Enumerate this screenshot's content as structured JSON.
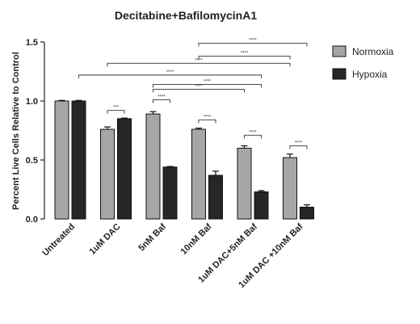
{
  "chart_data": {
    "type": "bar",
    "title": "Decitabine+BafilomycinA1",
    "ylabel": "Percent Live Cells Relative to Control",
    "xlabel": "",
    "ylim": [
      0,
      1.5
    ],
    "yticks": [
      "0.0",
      "0.5",
      "1.0",
      "1.5"
    ],
    "categories": [
      "Untreated",
      "1uM DAC",
      "5nM Baf",
      "10nM Baf",
      "1uM DAC+5nM Baf",
      "1uM DAC +10nM Baf"
    ],
    "series": [
      {
        "name": "Normoxia",
        "color": "#a6a6a6",
        "values": [
          1.0,
          0.76,
          0.89,
          0.76,
          0.6,
          0.52
        ],
        "errors": [
          0.005,
          0.02,
          0.02,
          0.01,
          0.02,
          0.03
        ]
      },
      {
        "name": "Hypoxia",
        "color": "#262626",
        "values": [
          1.0,
          0.85,
          0.44,
          0.37,
          0.23,
          0.1
        ],
        "errors": [
          0.005,
          0.005,
          0.005,
          0.035,
          0.01,
          0.02
        ]
      }
    ],
    "legend_position": "top-right",
    "significance": [
      {
        "from": [
          1,
          0
        ],
        "to": [
          1,
          1
        ],
        "label": "***"
      },
      {
        "from": [
          2,
          0
        ],
        "to": [
          2,
          1
        ],
        "label": "****"
      },
      {
        "from": [
          3,
          0
        ],
        "to": [
          3,
          1
        ],
        "label": "****"
      },
      {
        "from": [
          4,
          0
        ],
        "to": [
          4,
          1
        ],
        "label": "****"
      },
      {
        "from": [
          5,
          0
        ],
        "to": [
          5,
          1
        ],
        "label": "****"
      },
      {
        "from": [
          2,
          0
        ],
        "to": [
          4,
          0
        ],
        "label": "****"
      },
      {
        "from": [
          2,
          0
        ],
        "to": [
          4,
          1
        ],
        "label": "****"
      },
      {
        "from": [
          0,
          1
        ],
        "to": [
          4,
          1
        ],
        "label": "****"
      },
      {
        "from": [
          1,
          0
        ],
        "to": [
          5,
          0
        ],
        "label": "****"
      },
      {
        "from": [
          3,
          0
        ],
        "to": [
          5,
          0
        ],
        "label": "****"
      },
      {
        "from": [
          3,
          0
        ],
        "to": [
          5,
          1
        ],
        "label": "****"
      }
    ]
  }
}
